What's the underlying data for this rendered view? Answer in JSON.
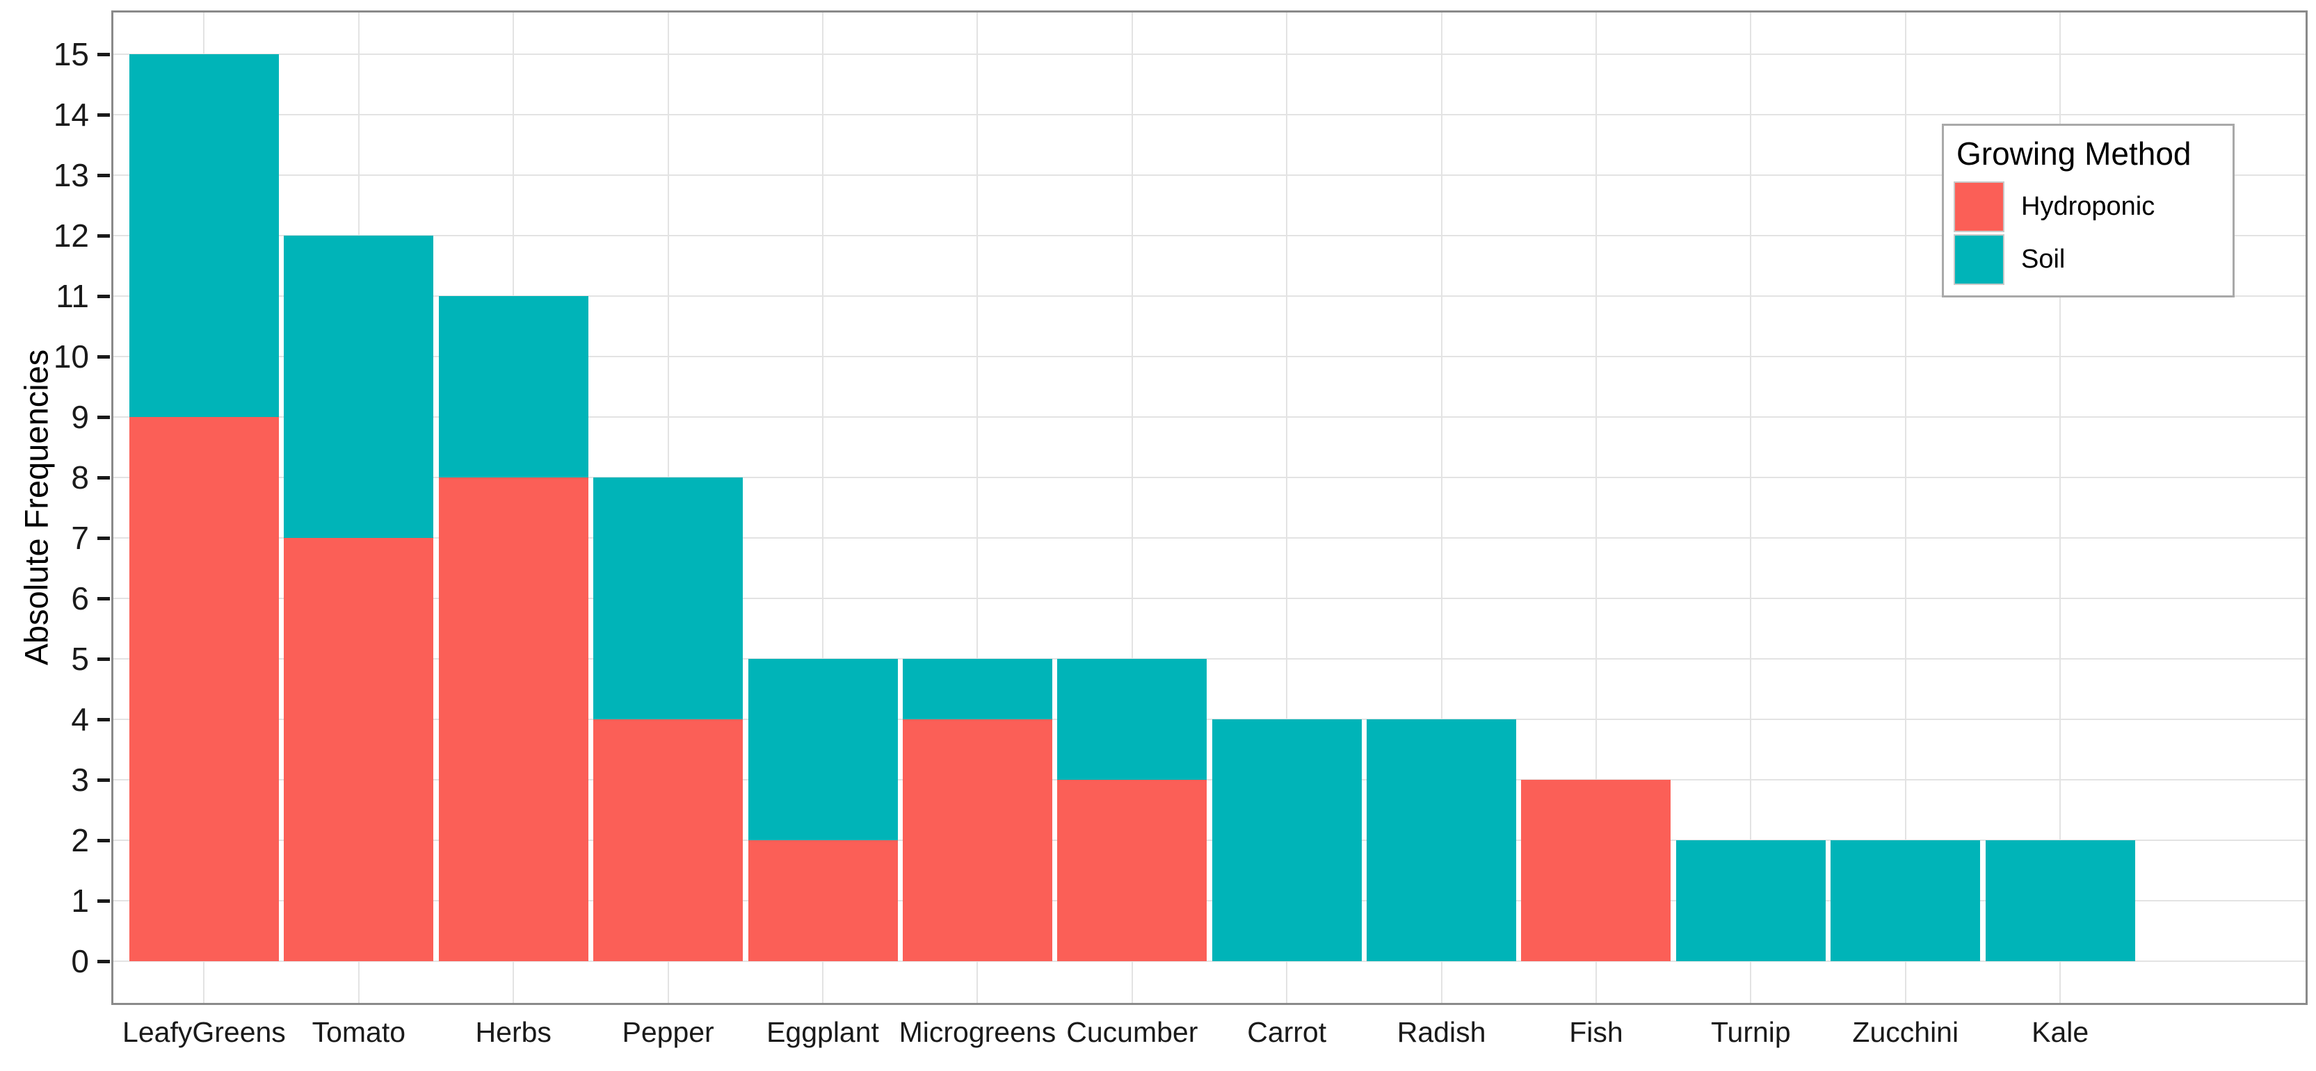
{
  "chart_data": {
    "type": "bar",
    "stacked": true,
    "title": "",
    "xlabel": "",
    "ylabel": "Absolute Frequencies",
    "ylim": [
      0,
      15
    ],
    "y_ticks": [
      0,
      1,
      2,
      3,
      4,
      5,
      6,
      7,
      8,
      9,
      10,
      11,
      12,
      13,
      14,
      15
    ],
    "categories": [
      "LeafyGreens",
      "Tomato",
      "Herbs",
      "Pepper",
      "Eggplant",
      "Microgreens",
      "Cucumber",
      "Carrot",
      "Radish",
      "Fish",
      "Turnip",
      "Zucchini",
      "Kale"
    ],
    "series": [
      {
        "name": "Hydroponic",
        "color": "#FB5F57",
        "values": [
          9,
          7,
          8,
          4,
          2,
          4,
          3,
          0,
          0,
          3,
          0,
          0,
          0
        ]
      },
      {
        "name": "Soil",
        "color": "#00B4B8",
        "values": [
          6,
          5,
          3,
          4,
          3,
          1,
          2,
          4,
          4,
          0,
          2,
          2,
          2
        ]
      }
    ],
    "totals": [
      15,
      12,
      11,
      8,
      5,
      5,
      5,
      4,
      4,
      3,
      2,
      2,
      2
    ],
    "legend": {
      "title": "Growing Method",
      "position": "top-right-inside"
    },
    "grid": true,
    "gridlines": {
      "horizontal": "every integer 0-15",
      "vertical": "at category centers"
    },
    "style": {
      "grid_color": "#E3E3E3",
      "panel_border_color": "#8A8A8A",
      "tick_color": "#1A1A1A",
      "text_color": "#1A1A1A",
      "legend_border_color": "#A9A9A9",
      "legend_key_border_color": "#C9C9C9",
      "background": "#FFFFFF"
    }
  }
}
